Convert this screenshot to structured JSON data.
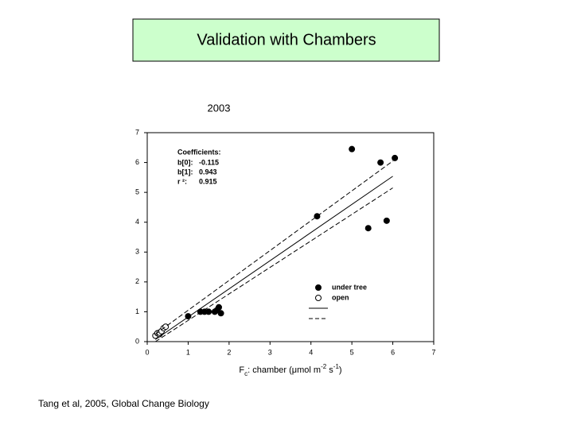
{
  "slide": {
    "title": "Validation with Chambers",
    "footer": "Tang et al, 2005, Global Change Biology"
  },
  "chart_data": {
    "type": "scatter",
    "title": "2003",
    "xlabel": [
      "F",
      "c",
      ": chamber (",
      "μmol m",
      "-2",
      " s",
      "-1",
      ")"
    ],
    "xlim": [
      0,
      7
    ],
    "xticks": [
      0,
      1,
      2,
      3,
      4,
      5,
      6,
      7
    ],
    "ylim": [
      0,
      7
    ],
    "yticks": [
      0,
      1,
      2,
      3,
      4,
      5,
      6,
      7
    ],
    "coefficients": {
      "title": "Coefficients:",
      "rows": [
        {
          "label": "b[0]:",
          "value": -0.115
        },
        {
          "label": "b[1]:",
          "value": 0.943
        },
        {
          "label": "r ²:",
          "value": 0.915
        }
      ]
    },
    "series": [
      {
        "name": "under tree",
        "type": "scatter",
        "color": "#000000",
        "edgecolor": "#000000",
        "x": [
          1.0,
          1.3,
          1.4,
          1.5,
          1.65,
          1.7,
          1.75,
          1.8,
          4.15,
          5.0,
          5.4,
          5.7,
          5.85,
          6.05
        ],
        "values": [
          0.85,
          1.0,
          1.0,
          1.0,
          1.0,
          1.05,
          1.15,
          0.95,
          4.2,
          6.45,
          3.8,
          6.0,
          4.05,
          6.15
        ]
      },
      {
        "name": "open",
        "type": "scatter",
        "color": "#ffffff",
        "edgecolor": "#000000",
        "x": [
          0.2,
          0.25,
          0.3,
          0.3,
          0.35,
          0.4,
          0.45
        ],
        "values": [
          0.2,
          0.28,
          0.25,
          0.3,
          0.35,
          0.45,
          0.5
        ]
      },
      {
        "type": "line",
        "style": "solid",
        "color": "#000000",
        "x": [
          0.2,
          6.0
        ],
        "values": [
          0.07,
          5.54
        ]
      },
      {
        "type": "line",
        "style": "dashed",
        "color": "#000000",
        "x": [
          0.2,
          6.0
        ],
        "values": [
          0.25,
          6.05
        ]
      },
      {
        "type": "line",
        "style": "dashed",
        "color": "#000000",
        "x": [
          0.2,
          6.0
        ],
        "values": [
          0.0,
          5.15
        ]
      }
    ]
  }
}
